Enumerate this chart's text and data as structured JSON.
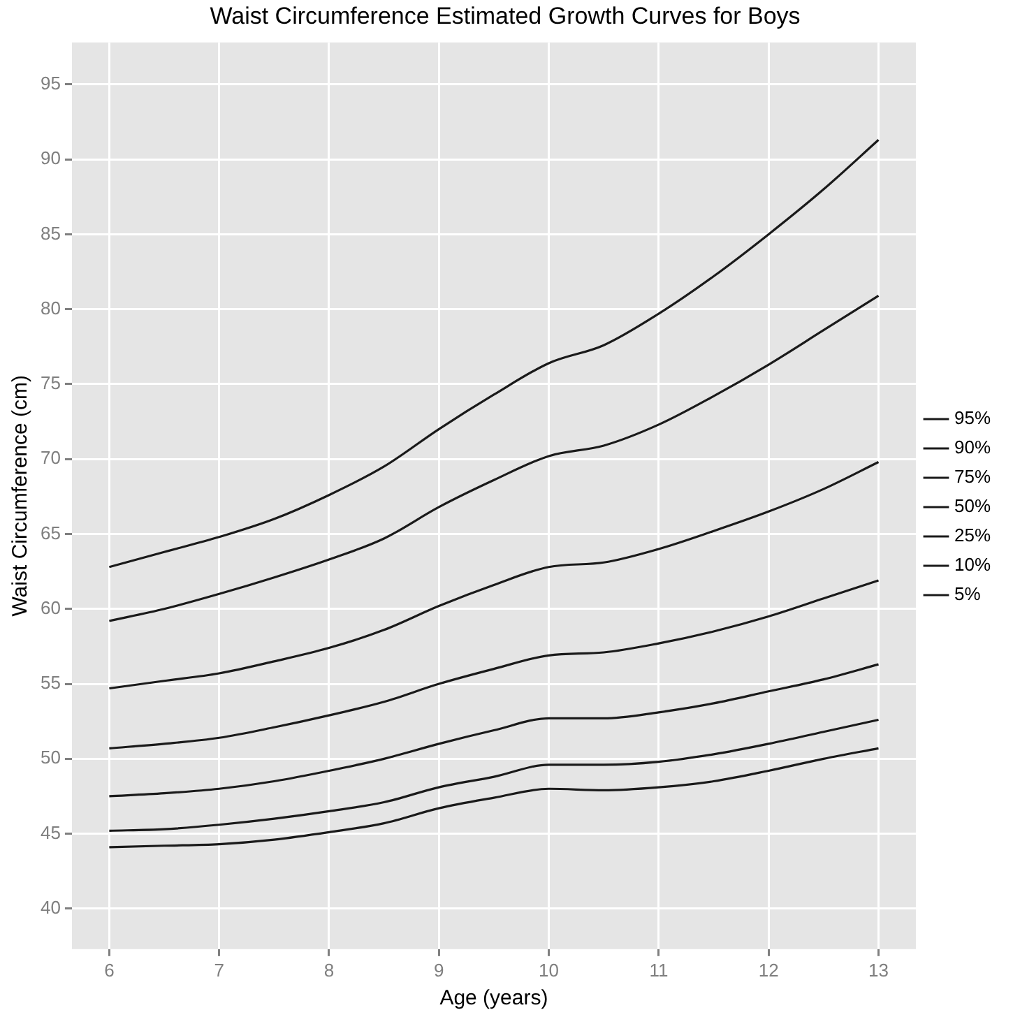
{
  "chart_data": {
    "type": "line",
    "title": "Waist Circumference Estimated Growth Curves for Boys",
    "xlabel": "Age (years)",
    "ylabel": "Waist Circumference (cm)",
    "x": [
      6,
      6.5,
      7,
      7.5,
      8,
      8.5,
      9,
      9.5,
      10,
      10.5,
      11,
      11.5,
      12,
      12.5,
      13
    ],
    "series": [
      {
        "name": "95%",
        "color": "#1a1a1a",
        "values": [
          62.8,
          63.8,
          64.8,
          66.0,
          67.6,
          69.5,
          72.0,
          74.3,
          76.4,
          77.6,
          79.7,
          82.2,
          85.0,
          88.0,
          91.3
        ]
      },
      {
        "name": "90%",
        "color": "#1a1a1a",
        "values": [
          59.2,
          60.0,
          61.0,
          62.1,
          63.3,
          64.7,
          66.8,
          68.6,
          70.2,
          70.9,
          72.3,
          74.2,
          76.3,
          78.6,
          80.9
        ]
      },
      {
        "name": "75%",
        "color": "#1a1a1a",
        "values": [
          54.7,
          55.2,
          55.7,
          56.5,
          57.4,
          58.6,
          60.2,
          61.6,
          62.8,
          63.1,
          64.0,
          65.2,
          66.5,
          68.0,
          69.8
        ]
      },
      {
        "name": "50%",
        "color": "#1a1a1a",
        "values": [
          50.7,
          51.0,
          51.4,
          52.1,
          52.9,
          53.8,
          55.0,
          56.0,
          56.9,
          57.1,
          57.7,
          58.5,
          59.5,
          60.7,
          61.9
        ]
      },
      {
        "name": "25%",
        "color": "#1a1a1a",
        "values": [
          47.5,
          47.7,
          48.0,
          48.5,
          49.2,
          50.0,
          51.0,
          51.9,
          52.7,
          52.7,
          53.1,
          53.7,
          54.5,
          55.3,
          56.3
        ]
      },
      {
        "name": "10%",
        "color": "#1a1a1a",
        "values": [
          45.2,
          45.3,
          45.6,
          46.0,
          46.5,
          47.1,
          48.1,
          48.8,
          49.6,
          49.6,
          49.8,
          50.3,
          51.0,
          51.8,
          52.6
        ]
      },
      {
        "name": "5%",
        "color": "#1a1a1a",
        "values": [
          44.1,
          44.2,
          44.3,
          44.6,
          45.1,
          45.7,
          46.7,
          47.4,
          48.0,
          47.9,
          48.1,
          48.5,
          49.2,
          50.0,
          50.7
        ]
      }
    ],
    "xlim": [
      5.66,
      13.34
    ],
    "xticks": [
      6,
      7,
      8,
      9,
      10,
      11,
      12,
      13
    ],
    "ylim": [
      37.3,
      97.8
    ],
    "yticks": [
      40,
      45,
      50,
      55,
      60,
      65,
      70,
      75,
      80,
      85,
      90,
      95
    ],
    "grid": true,
    "legend": "right",
    "marker": "none",
    "line_style": "solid"
  }
}
